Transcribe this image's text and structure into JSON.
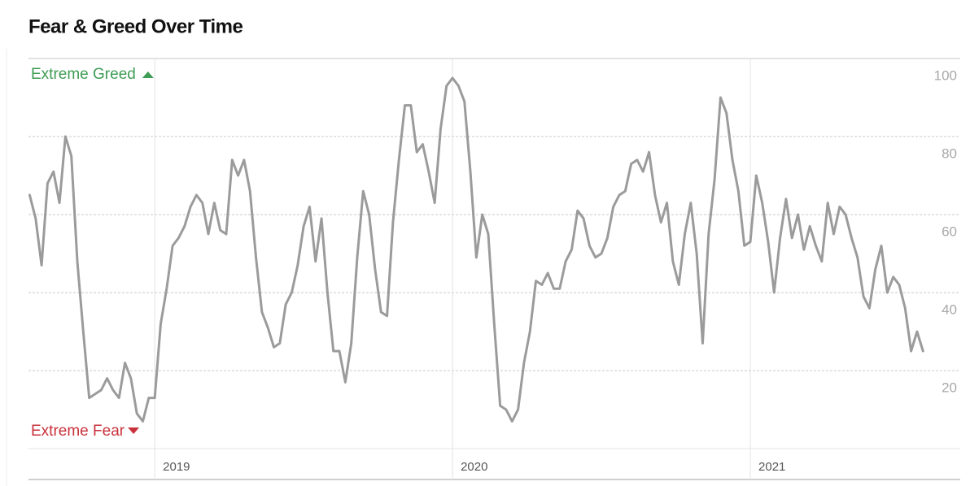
{
  "chart_data": {
    "type": "line",
    "title": "Fear & Greed Over Time",
    "top_label": "Extreme Greed",
    "bottom_label": "Extreme Fear",
    "color": "#9b9b9b",
    "top_label_color": "#3e9c55",
    "bottom_label_color": "#c9323c",
    "x": [
      2018.58,
      2018.6,
      2018.62,
      2018.64,
      2018.66,
      2018.68,
      2018.7,
      2018.72,
      2018.74,
      2018.76,
      2018.78,
      2018.8,
      2018.82,
      2018.84,
      2018.86,
      2018.88,
      2018.9,
      2018.92,
      2018.94,
      2018.96,
      2018.98,
      2019.0,
      2019.02,
      2019.04,
      2019.06,
      2019.08,
      2019.1,
      2019.12,
      2019.14,
      2019.16,
      2019.18,
      2019.2,
      2019.22,
      2019.24,
      2019.26,
      2019.28,
      2019.3,
      2019.32,
      2019.34,
      2019.36,
      2019.38,
      2019.4,
      2019.42,
      2019.44,
      2019.46,
      2019.48,
      2019.5,
      2019.52,
      2019.54,
      2019.56,
      2019.58,
      2019.6,
      2019.62,
      2019.64,
      2019.66,
      2019.68,
      2019.7,
      2019.72,
      2019.74,
      2019.76,
      2019.78,
      2019.8,
      2019.82,
      2019.84,
      2019.86,
      2019.88,
      2019.9,
      2019.92,
      2019.94,
      2019.96,
      2019.98,
      2020.0,
      2020.02,
      2020.04,
      2020.06,
      2020.08,
      2020.1,
      2020.12,
      2020.14,
      2020.16,
      2020.18,
      2020.2,
      2020.22,
      2020.24,
      2020.26,
      2020.28,
      2020.3,
      2020.32,
      2020.34,
      2020.36,
      2020.38,
      2020.4,
      2020.42,
      2020.44,
      2020.46,
      2020.48,
      2020.5,
      2020.52,
      2020.54,
      2020.56,
      2020.58,
      2020.6,
      2020.62,
      2020.64,
      2020.66,
      2020.68,
      2020.7,
      2020.72,
      2020.74,
      2020.76,
      2020.78,
      2020.8,
      2020.82,
      2020.84,
      2020.86,
      2020.88,
      2020.9,
      2020.92,
      2020.94,
      2020.96,
      2020.98,
      2021.0,
      2021.02,
      2021.04,
      2021.06,
      2021.08,
      2021.1,
      2021.12,
      2021.14,
      2021.16,
      2021.18,
      2021.2,
      2021.22,
      2021.24,
      2021.26,
      2021.28,
      2021.3,
      2021.32,
      2021.34,
      2021.36,
      2021.38,
      2021.4,
      2021.42,
      2021.44,
      2021.46,
      2021.48,
      2021.5,
      2021.52,
      2021.54,
      2021.56,
      2021.58
    ],
    "values": [
      65,
      59,
      47,
      68,
      71,
      63,
      80,
      75,
      48,
      30,
      13,
      14,
      15,
      18,
      15,
      13,
      22,
      18,
      9,
      7,
      13,
      13,
      32,
      41,
      52,
      54,
      57,
      62,
      65,
      63,
      55,
      63,
      56,
      55,
      74,
      70,
      74,
      66,
      49,
      35,
      31,
      26,
      27,
      37,
      40,
      47,
      57,
      62,
      48,
      59,
      40,
      25,
      25,
      17,
      27,
      49,
      66,
      60,
      46,
      35,
      34,
      58,
      74,
      88,
      88,
      76,
      78,
      71,
      63,
      82,
      93,
      95,
      93,
      89,
      71,
      49,
      60,
      55,
      32,
      11,
      10,
      7,
      10,
      22,
      30,
      43,
      42,
      45,
      41,
      41,
      48,
      51,
      61,
      59,
      52,
      49,
      50,
      54,
      62,
      65,
      66,
      73,
      74,
      71,
      76,
      65,
      58,
      63,
      48,
      42,
      55,
      63,
      50,
      27,
      55,
      69,
      90,
      86,
      74,
      66,
      52,
      53,
      70,
      63,
      53,
      40,
      54,
      64,
      54,
      60,
      51,
      57,
      52,
      48,
      63,
      55,
      62,
      60,
      54,
      49,
      39,
      36,
      46,
      52,
      40,
      44,
      42,
      36,
      25,
      30,
      25
    ],
    "xlim": [
      2018.576,
      2021.705
    ],
    "xticks": [
      2019,
      2020,
      2021
    ],
    "ylim": [
      0,
      100
    ],
    "yticks": [
      20,
      40,
      60,
      80,
      100
    ],
    "grid": true
  }
}
